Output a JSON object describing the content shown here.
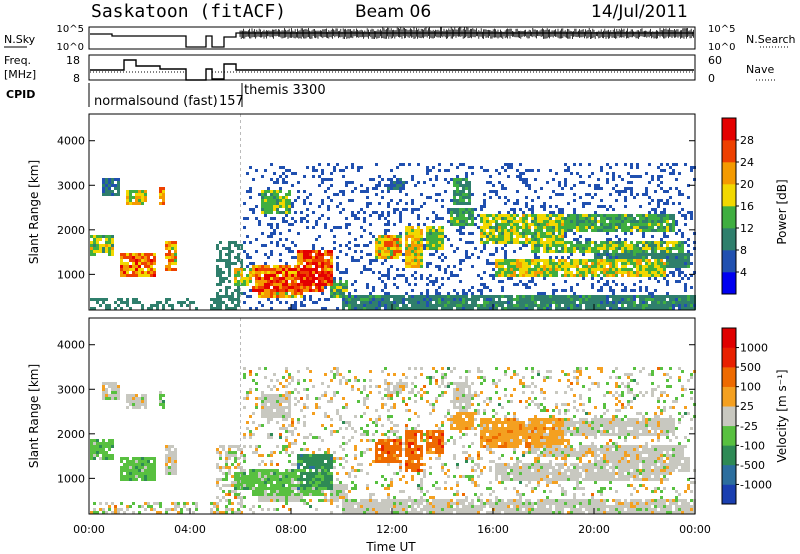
{
  "header": {
    "station": "Saskatoon (fitACF)",
    "beam": "Beam 06",
    "date": "14/Jul/2011"
  },
  "strip": {
    "nsky_label": "N.Sky",
    "nsearch_label": "N.Search",
    "nsky_ticks": [
      "10^5",
      "10^0"
    ],
    "nsearch_ticks": [
      "10^5",
      "10^0"
    ],
    "freq_label_1": "Freq.",
    "freq_label_2": "[MHz]",
    "freq_ticks": [
      "18",
      "8"
    ],
    "nave_label": "Nave",
    "nave_ticks": [
      "60",
      "0"
    ],
    "cpid_label": "CPID",
    "cpid_1": "normalsound (fast)",
    "cpid_2": "157",
    "cpid_3": "themis 3300"
  },
  "chart_data": [
    {
      "type": "heatmap",
      "ylabel": "Slant Range [km]",
      "yticks": [
        1000,
        2000,
        3000,
        4000
      ],
      "ylim": [
        200,
        4600
      ],
      "colorbar_label": "Power [dB]",
      "colorbar_ticks": [
        "28",
        "24",
        "20",
        "16",
        "12",
        "8",
        "4"
      ],
      "colors": [
        "#0000f0",
        "#2050b0",
        "#2f7f6c",
        "#3fae40",
        "#f2d800",
        "#f49a00",
        "#ee4000",
        "#e40000"
      ]
    },
    {
      "type": "heatmap",
      "ylabel": "Slant Range [km]",
      "yticks": [
        1000,
        2000,
        3000,
        4000
      ],
      "ylim": [
        200,
        4600
      ],
      "xlabel": "Time UT",
      "xticks": [
        "00:00",
        "04:00",
        "08:00",
        "12:00",
        "16:00",
        "20:00",
        "00:00"
      ],
      "colorbar_label": "Velocity [m s⁻¹]",
      "colorbar_ticks": [
        "1000",
        "500",
        "100",
        "25",
        "-25",
        "-100",
        "-500",
        "-1000"
      ],
      "colors": [
        "#1a3fb0",
        "#2c6e9e",
        "#2e8a55",
        "#58c040",
        "#c8c8c0",
        "#f4a020",
        "#ee6a00",
        "#e82000",
        "#e00000"
      ]
    }
  ]
}
